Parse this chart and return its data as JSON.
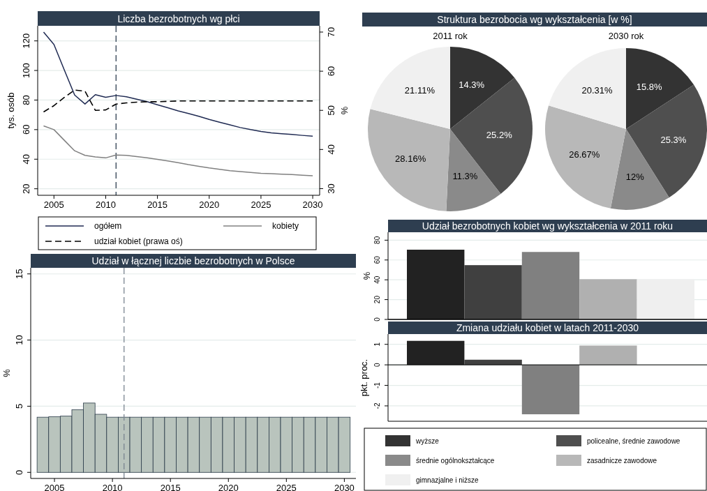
{
  "chart_data": [
    {
      "type": "line",
      "title": "Liczba bezrobotnych wg płci",
      "ylabel": "tys. osób",
      "y2label": "%",
      "x": [
        2004,
        2005,
        2006,
        2007,
        2008,
        2009,
        2010,
        2011,
        2012,
        2013,
        2014,
        2015,
        2016,
        2017,
        2018,
        2019,
        2020,
        2021,
        2022,
        2023,
        2024,
        2025,
        2026,
        2027,
        2028,
        2029,
        2030
      ],
      "xlim": [
        2003.43,
        2030.67
      ],
      "xticks": [
        2005,
        2010,
        2015,
        2020,
        2025,
        2030
      ],
      "ylim": [
        15.6,
        130.2
      ],
      "yticks": [
        20,
        40,
        60,
        80,
        100,
        120
      ],
      "y2lim": [
        28.3,
        71.6
      ],
      "y2ticks": [
        30,
        40,
        50,
        60,
        70
      ],
      "grid": "y",
      "legend": "bottom",
      "ref_lines": [
        {
          "axis": "x",
          "value": 2011,
          "color": "#2e3e50",
          "line_style": "dashed"
        }
      ],
      "series": [
        {
          "name": "ogółem",
          "color": "#1f2a52",
          "values": [
            126,
            117.6,
            100.4,
            83.4,
            77.3,
            83.6,
            81.9,
            83.1,
            82.2,
            80.6,
            78.9,
            76.8,
            74.8,
            72.7,
            70.9,
            69,
            66.9,
            65,
            63.2,
            61.4,
            60,
            58.8,
            57.8,
            57.2,
            56.7,
            56.1,
            55.6
          ]
        },
        {
          "name": "kobiety",
          "color": "#808080",
          "values": [
            62.5,
            60,
            52.8,
            45.7,
            42.6,
            41.5,
            40.9,
            42.8,
            42.6,
            41.8,
            41,
            39.9,
            38.8,
            37.6,
            36.3,
            35.2,
            34.1,
            33.2,
            32.2,
            31.6,
            31,
            30.5,
            30.2,
            29.9,
            29.6,
            29.2,
            28.8
          ]
        },
        {
          "name": "udział kobiet (prawa oś)",
          "color": "#000000",
          "axis": "y2",
          "line_style": "dashed",
          "values": [
            49.6,
            51.2,
            53.3,
            55.2,
            54.9,
            50,
            50.1,
            51.6,
            51.9,
            52.1,
            52.2,
            52.2,
            52.3,
            52.4,
            52.4,
            52.4,
            52.4,
            52.4,
            52.4,
            52.4,
            52.4,
            52.4,
            52.4,
            52.4,
            52.4,
            52.4,
            52.4
          ]
        }
      ]
    },
    {
      "type": "pie",
      "title": "Struktura bezrobocia wg wykształcenia [w %]",
      "subtitle": "2011 rok",
      "legend": "bottom",
      "categories": [
        "wyższe",
        "policealne, średnie zawodowe",
        "średnie ogólnokształcące",
        "zasadnicze zawodowe",
        "gimnazjalne i niższe"
      ],
      "values": [
        14.3,
        25.2,
        11.3,
        28.16,
        21.11
      ],
      "value_labels": [
        "14.3%",
        "25.2%",
        "11.3%",
        "28.16%",
        "21.11%"
      ],
      "colors": [
        "#333333",
        "#4f4f4f",
        "#8a8a8a",
        "#b8b8b8",
        "#f0f0f0"
      ]
    },
    {
      "type": "pie",
      "subtitle": "2030 rok",
      "categories": [
        null,
        null,
        null,
        null,
        null
      ],
      "values": [
        15.8,
        25.3,
        12,
        26.67,
        20.31
      ],
      "value_labels": [
        "15.8%",
        "25.3%",
        "12%",
        "26.67%",
        "20.31%"
      ],
      "colors": [
        "#333333",
        "#4f4f4f",
        "#8a8a8a",
        "#b8b8b8",
        "#f0f0f0"
      ]
    },
    {
      "type": "bar",
      "title": "Udział bezrobotnych kobiet wg wykształcenia w 2011 roku",
      "ylabel": "%",
      "categories": [
        null,
        null,
        null,
        null,
        null
      ],
      "values": [
        70.4,
        54.8,
        68.1,
        40.6,
        40.6
      ],
      "colors": [
        "#222222",
        "#404040",
        "#808080",
        "#b0b0b0",
        "#efefef"
      ],
      "ylim": [
        0,
        88
      ],
      "yticks": [
        0,
        20,
        40,
        60,
        80
      ],
      "grid": "y"
    },
    {
      "type": "bar",
      "title": "Zmiana udziału kobiet w latach 2011-2030",
      "ylabel": "pkt. proc.",
      "categories": [
        null,
        null,
        null,
        null,
        null
      ],
      "values": [
        1.17,
        0.25,
        -2.41,
        0.94,
        -0.03
      ],
      "colors": [
        "#222222",
        "#404040",
        "#808080",
        "#b0b0b0",
        "#efefef"
      ],
      "ylim": [
        -2.75,
        1.5
      ],
      "yticks": [
        -2,
        -1,
        0,
        1
      ],
      "grid": "y"
    },
    {
      "type": "bar",
      "title": "Udział w łącznej liczbie bezrobotnych w Polsce",
      "ylabel": "%",
      "x": [
        2004,
        2005,
        2006,
        2007,
        2008,
        2009,
        2010,
        2011,
        2012,
        2013,
        2014,
        2015,
        2016,
        2017,
        2018,
        2019,
        2020,
        2021,
        2022,
        2023,
        2024,
        2025,
        2026,
        2027,
        2028,
        2029,
        2030
      ],
      "values": [
        4.17,
        4.2,
        4.25,
        4.73,
        5.24,
        4.39,
        4.17,
        4.17,
        4.17,
        4.17,
        4.17,
        4.17,
        4.17,
        4.17,
        4.17,
        4.17,
        4.17,
        4.17,
        4.17,
        4.17,
        4.17,
        4.17,
        4.17,
        4.17,
        4.17,
        4.17,
        4.17
      ],
      "color": "#b9c4bd",
      "xlim": [
        2002.95,
        2031
      ],
      "xticks": [
        2005,
        2010,
        2015,
        2020,
        2025,
        2030
      ],
      "ylim": [
        -0.46,
        15.46
      ],
      "yticks": [
        0,
        5,
        10,
        15
      ],
      "grid": "y",
      "ref_lines": [
        {
          "axis": "x",
          "value": 2011,
          "color": "#7a8490",
          "line_style": "dashed"
        }
      ]
    }
  ]
}
